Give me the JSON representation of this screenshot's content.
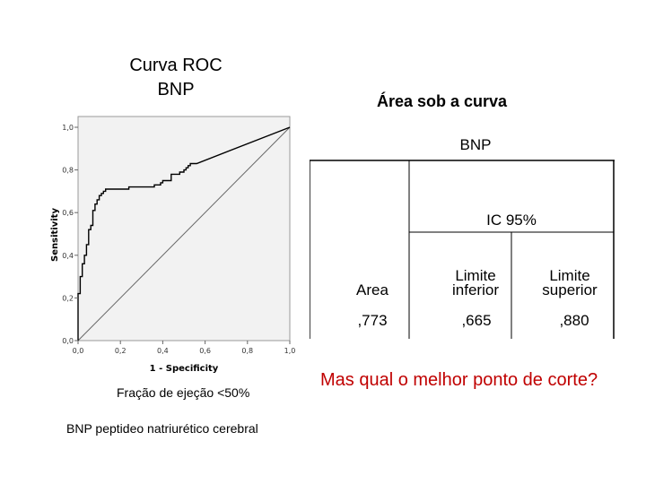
{
  "roc_title": [
    "Curva ROC",
    "BNP"
  ],
  "chart_data": {
    "type": "line",
    "xlabel": "1 - Specificity",
    "ylabel": "Sensitivity",
    "xlim": [
      0,
      1
    ],
    "ylim": [
      0,
      1
    ],
    "xticks": [
      "0,0",
      "0,2",
      "0,4",
      "0,6",
      "0,8",
      "1,0"
    ],
    "yticks": [
      "0,0",
      "0,2",
      "0,4",
      "0,6",
      "0,8",
      "1,0"
    ],
    "series": [
      {
        "x": [
          0.0,
          0.0,
          0.01,
          0.01,
          0.02,
          0.02,
          0.03,
          0.03,
          0.04,
          0.04,
          0.05,
          0.05,
          0.06,
          0.06,
          0.07,
          0.07,
          0.08,
          0.08,
          0.09,
          0.09,
          0.1,
          0.1,
          0.11,
          0.11,
          0.12,
          0.12,
          0.13,
          0.13,
          0.17,
          0.17,
          0.24,
          0.24,
          0.36,
          0.36,
          0.39,
          0.39,
          0.4,
          0.4,
          0.44,
          0.44,
          0.46,
          0.46,
          0.48,
          0.48,
          0.5,
          0.5,
          0.51,
          0.51,
          0.52,
          0.52,
          0.53,
          0.53,
          0.56,
          1.0
        ],
        "y": [
          0.0,
          0.22,
          0.22,
          0.3,
          0.3,
          0.36,
          0.36,
          0.4,
          0.4,
          0.45,
          0.45,
          0.52,
          0.52,
          0.54,
          0.54,
          0.61,
          0.61,
          0.64,
          0.64,
          0.66,
          0.66,
          0.68,
          0.68,
          0.69,
          0.69,
          0.7,
          0.7,
          0.71,
          0.71,
          0.71,
          0.71,
          0.72,
          0.72,
          0.73,
          0.73,
          0.74,
          0.74,
          0.75,
          0.75,
          0.78,
          0.78,
          0.78,
          0.78,
          0.79,
          0.79,
          0.8,
          0.8,
          0.81,
          0.81,
          0.82,
          0.82,
          0.83,
          0.83,
          1.0
        ]
      }
    ]
  },
  "auc": {
    "title": "Área sob a curva",
    "group": "BNP",
    "ci_header": "IC 95%",
    "col_area": "Area",
    "col_lower": [
      "Limite",
      "inferior"
    ],
    "col_upper": [
      "Limite",
      "superior"
    ],
    "val_area": ",773",
    "val_lower": ",665",
    "val_upper": ",880"
  },
  "caption_ef": "Fração de ejeção <50%",
  "caption_bnp": "BNP peptideo natriurético cerebral",
  "question": "Mas qual o melhor ponto de corte?",
  "colors": {
    "question": "#c00000",
    "plot_bg": "#f2f2f2",
    "line": "#000000"
  }
}
